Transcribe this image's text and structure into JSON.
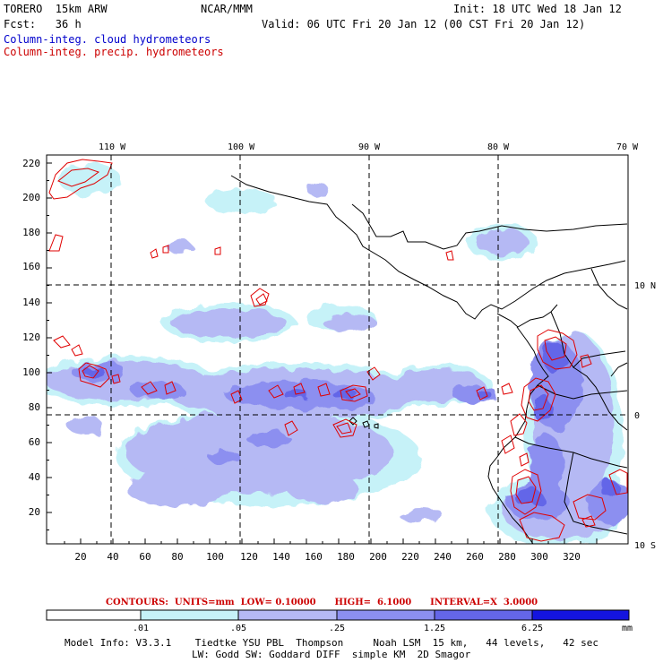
{
  "header": {
    "model": "TORERO  15km ARW",
    "org": "NCAR/MMM",
    "init": "Init: 18 UTC Wed 18 Jan 12",
    "fcst": "Fcst:   36 h",
    "valid": "Valid: 06 UTC Fri 20 Jan 12 (00 CST Fri 20 Jan 12)",
    "field1": "Column-integ. cloud hydrometeors",
    "field2": "Column-integ. precip. hydrometeors"
  },
  "colors": {
    "cloud_light": "#c6f2f8",
    "cloud_1": "#b5b9f4",
    "cloud_2": "#8c8ff0",
    "cloud_3": "#6466e8",
    "cloud_4": "#3a3ce0",
    "cloud_5": "#1414e0",
    "contour": "#e00000",
    "coast": "#000000"
  },
  "map": {
    "lon_labels": [
      "110 W",
      "100 W",
      "90 W",
      "80 W",
      "70 W"
    ],
    "lat_labels": [
      "10 N",
      "0",
      "10 S"
    ],
    "y_ticks": [
      "220",
      "200",
      "180",
      "160",
      "140",
      "120",
      "100",
      "80",
      "60",
      "40",
      "20"
    ],
    "x_ticks": [
      "20",
      "40",
      "60",
      "80",
      "100",
      "120",
      "140",
      "160",
      "180",
      "200",
      "220",
      "240",
      "260",
      "280",
      "300",
      "320"
    ]
  },
  "contours_text": "CONTOURS:  UNITS=mm  LOW= 0.10000      HIGH=  6.1000      INTERVAL=X  3.0000",
  "colorbar": {
    "labels": [
      ".01",
      ".05",
      ".25",
      "1.25",
      "6.25"
    ],
    "unit": "mm"
  },
  "footer": {
    "line1": "Model Info: V3.3.1    Tiedtke YSU PBL  Thompson     Noah LSM  15 km,   44 levels,   42 sec",
    "line2": "LW: Godd SW: Goddard DIFF  simple KM  2D Smagor"
  }
}
